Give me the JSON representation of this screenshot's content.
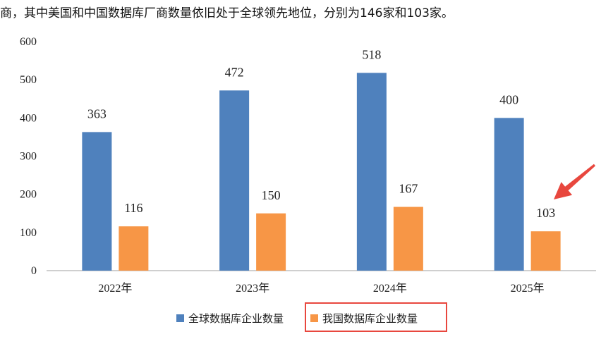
{
  "intro_text": "商，其中美国和中国数据库厂商数量依旧处于全球领先地位，分别为146家和103家。",
  "chart_data": {
    "type": "bar",
    "categories": [
      "2022年",
      "2023年",
      "2024年",
      "2025年"
    ],
    "series": [
      {
        "name": "全球数据库企业数量",
        "values": [
          363,
          472,
          518,
          400
        ],
        "color": "#4f81bd"
      },
      {
        "name": "我国数据库企业数量",
        "values": [
          116,
          150,
          167,
          103
        ],
        "color": "#f79646"
      }
    ],
    "title": "",
    "xlabel": "",
    "ylabel": "",
    "ylim": [
      0,
      600
    ],
    "yticks": [
      0,
      100,
      200,
      300,
      400,
      500,
      600
    ],
    "grid": false,
    "legend_position": "bottom-center",
    "highlight": {
      "series_index": 1,
      "category_index": 3,
      "arrow_color": "#e8473e",
      "box_color": "#e8473e"
    }
  }
}
